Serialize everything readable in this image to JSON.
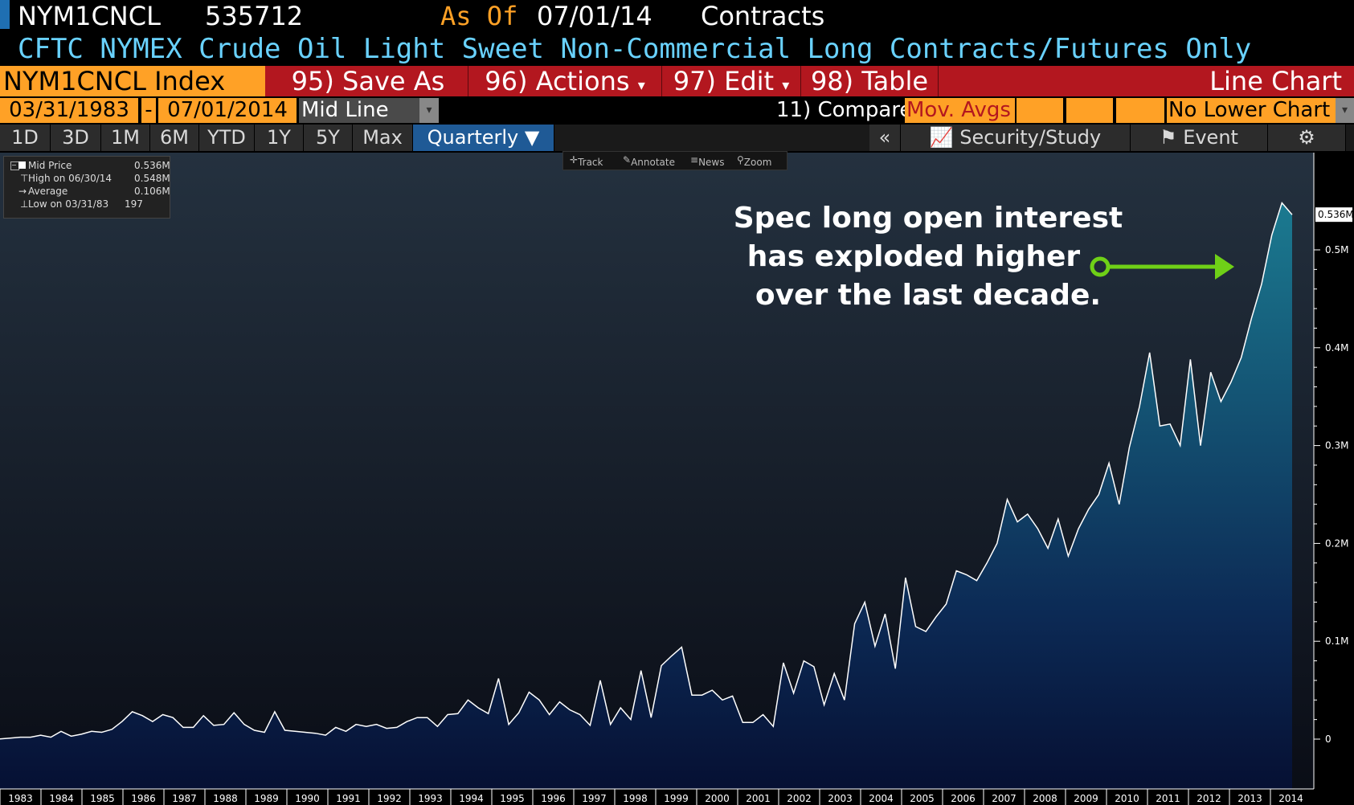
{
  "header": {
    "ticker": "NYM1CNCL",
    "value": "535712",
    "as_of_label": "As Of",
    "as_of_date": "07/01/14",
    "units": "Contracts",
    "description": "CFTC NYMEX Crude Oil Light Sweet Non-Commercial Long Contracts/Futures Only"
  },
  "toolbar": {
    "security": "NYM1CNCL Index",
    "save_as": "95) Save As",
    "actions": "96) Actions",
    "actions_arrow": "▾",
    "edit": "97) Edit",
    "edit_arrow": "▾",
    "table": "98) Table",
    "chart_type": "Line Chart"
  },
  "range": {
    "start": "03/31/1983",
    "dash": "-",
    "end": "07/01/2014",
    "mode": "Mid Line",
    "compare": "11) Compare",
    "mov_avgs": "Mov. Avgs",
    "lower": "No Lower Chart"
  },
  "tabs": {
    "items": [
      "1D",
      "3D",
      "1M",
      "6M",
      "YTD",
      "1Y",
      "5Y",
      "Max"
    ],
    "period": "Quarterly ▼",
    "collapse": "«",
    "security_study": "Security/Study",
    "event": "Event",
    "gear": "⚙"
  },
  "legend": {
    "mid_label": "Mid Price",
    "mid_value": "0.536M",
    "high_label": "High on 06/30/14",
    "high_value": "0.548M",
    "avg_label": "Average",
    "avg_value": "0.106M",
    "low_label": "Low on 03/31/83",
    "low_value": "197"
  },
  "chart_tools": {
    "track": "Track",
    "annotate": "Annotate",
    "news": "News",
    "zoom": "Zoom"
  },
  "annotation": {
    "line1": "Spec long open interest",
    "line2": "has exploded higher",
    "line3": "over the last decade."
  },
  "colors": {
    "accent": "#ffa126",
    "toolbar": "#b3171f",
    "title": "#69d2ff",
    "arrow": "#6fd017",
    "fill_top": "#1b7a90",
    "fill_bottom": "#061033"
  },
  "chart_data": {
    "type": "area",
    "xlabel": "",
    "ylabel": "",
    "ylim": [
      0,
      0.6
    ],
    "y_ticks": [
      "0",
      "0.1M",
      "0.2M",
      "0.3M",
      "0.4M",
      "0.5M"
    ],
    "y_tick_values": [
      0,
      0.1,
      0.2,
      0.3,
      0.4,
      0.5
    ],
    "last_value_label": "0.536M",
    "last_value": 0.536,
    "x_ticks": [
      "1983",
      "1984",
      "1985",
      "1986",
      "1987",
      "1988",
      "1989",
      "1990",
      "1991",
      "1992",
      "1993",
      "1994",
      "1995",
      "1996",
      "1997",
      "1998",
      "1999",
      "2000",
      "2001",
      "2002",
      "2003",
      "2004",
      "2005",
      "2006",
      "2007",
      "2008",
      "2009",
      "2010",
      "2011",
      "2012",
      "2013",
      "2014"
    ],
    "series": [
      {
        "values": [
          0.0002,
          0.001,
          0.002,
          0.002,
          0.004,
          0.002,
          0.008,
          0.003,
          0.005,
          0.008,
          0.007,
          0.01,
          0.018,
          0.028,
          0.024,
          0.018,
          0.025,
          0.022,
          0.012,
          0.012,
          0.024,
          0.014,
          0.015,
          0.027,
          0.015,
          0.009,
          0.007,
          0.028,
          0.009,
          0.008,
          0.007,
          0.006,
          0.004,
          0.012,
          0.008,
          0.015,
          0.013,
          0.015,
          0.011,
          0.012,
          0.018,
          0.022,
          0.022,
          0.013,
          0.025,
          0.026,
          0.04,
          0.032,
          0.026,
          0.062,
          0.015,
          0.027,
          0.048,
          0.04,
          0.025,
          0.038,
          0.03,
          0.025,
          0.014,
          0.06,
          0.015,
          0.032,
          0.02,
          0.07,
          0.022,
          0.075,
          0.085,
          0.094,
          0.045,
          0.045,
          0.05,
          0.04,
          0.044,
          0.017,
          0.017,
          0.025,
          0.013,
          0.078,
          0.047,
          0.08,
          0.074,
          0.035,
          0.067,
          0.04,
          0.118,
          0.14,
          0.095,
          0.128,
          0.072,
          0.165,
          0.115,
          0.11,
          0.125,
          0.138,
          0.172,
          0.168,
          0.162,
          0.18,
          0.2,
          0.245,
          0.222,
          0.23,
          0.215,
          0.195,
          0.225,
          0.187,
          0.215,
          0.235,
          0.25,
          0.282,
          0.24,
          0.298,
          0.34,
          0.395,
          0.32,
          0.322,
          0.3,
          0.388,
          0.3,
          0.375,
          0.345,
          0.365,
          0.39,
          0.43,
          0.465,
          0.515,
          0.548,
          0.536
        ]
      }
    ]
  }
}
